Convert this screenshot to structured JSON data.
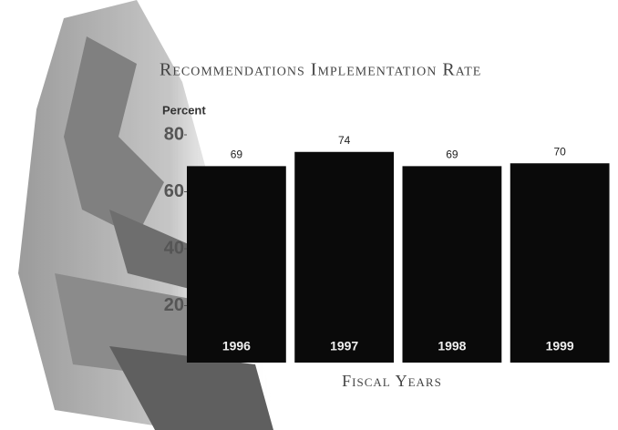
{
  "chart_data": {
    "type": "bar",
    "title": "Recommendations Implementation Rate",
    "y_label": "Percent",
    "x_label": "Fiscal Years",
    "categories": [
      "1996",
      "1997",
      "1998",
      "1999"
    ],
    "values": [
      69,
      74,
      69,
      70
    ],
    "color": "#0a0a0a",
    "ylim": [
      0,
      80
    ],
    "yticks": [
      20,
      40,
      60,
      80
    ]
  }
}
